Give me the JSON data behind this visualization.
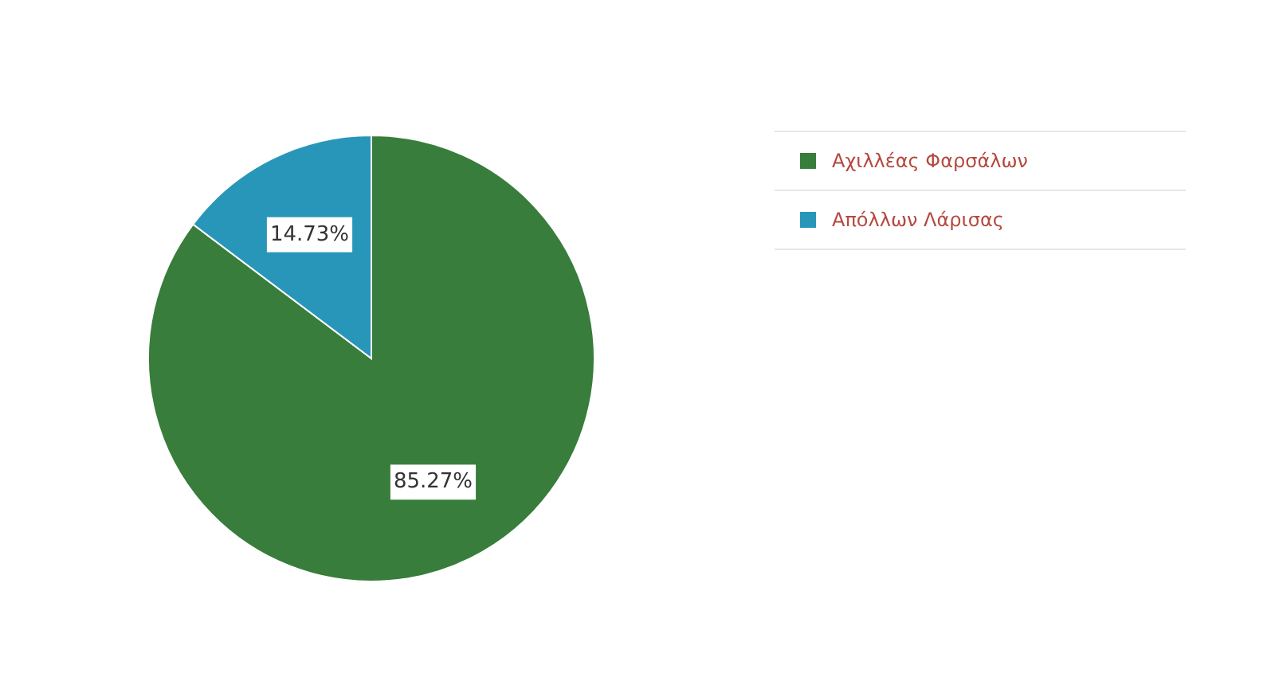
{
  "chart_data": {
    "type": "pie",
    "categories": [
      "Αχιλλέας Φαρσάλων",
      "Απόλλων Λάρισας"
    ],
    "values": [
      85.27,
      14.73
    ],
    "colors": [
      "#387d3b",
      "#2896b8"
    ],
    "value_labels": [
      "85.27%",
      "14.73%"
    ],
    "legend": "top right"
  }
}
